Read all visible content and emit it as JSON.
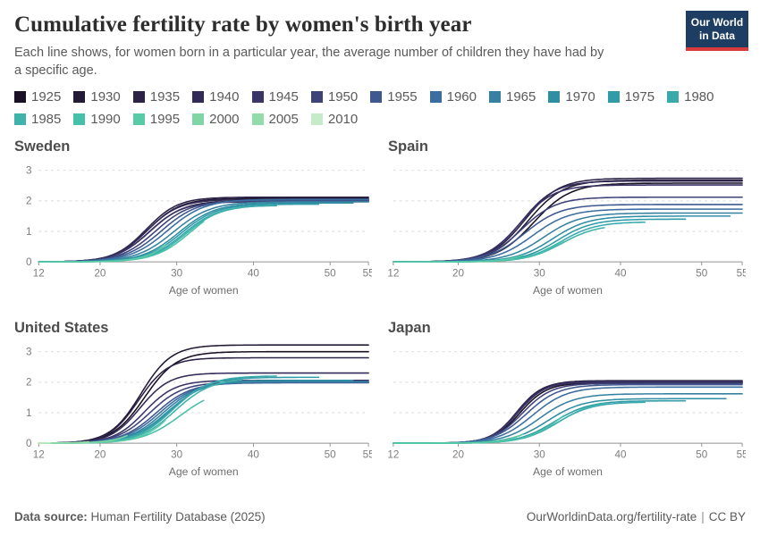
{
  "header": {
    "title": "Cumulative fertility rate by women's birth year",
    "subtitle": "Each line shows, for women born in a particular year, the average number of children they have had by a specific age."
  },
  "logo": {
    "line1": "Our World",
    "line2": "in Data",
    "bg_color": "#1d3d63",
    "accent_color": "#d93b3b"
  },
  "footer": {
    "datasource_label": "Data source:",
    "datasource_value": "Human Fertility Database (2025)",
    "url": "OurWorldinData.org/fertility-rate",
    "divider": "|",
    "license": "CC BY"
  },
  "chart_data": {
    "type": "line",
    "xlabel": "Age of women",
    "x_range": [
      12,
      55
    ],
    "x_ticks": [
      12,
      20,
      30,
      40,
      50,
      55
    ],
    "y_ticks": [
      0,
      1,
      2,
      3
    ],
    "ylim": [
      0,
      3.3
    ],
    "grid": "dashed horizontal gridlines at 1,2,3; solid baseline at 0",
    "legend_position": "top",
    "legend_years": [
      1925,
      1930,
      1935,
      1940,
      1945,
      1950,
      1955,
      1960,
      1965,
      1970,
      1975,
      1980,
      1985,
      1990,
      1995,
      2000,
      2005,
      2010
    ],
    "palette": {
      "1925": "#1a1125",
      "1930": "#231a36",
      "1935": "#2b2246",
      "1940": "#322b57",
      "1945": "#3a3467",
      "1950": "#3e4278",
      "1955": "#3f5890",
      "1960": "#3c6da0",
      "1965": "#3681a2",
      "1970": "#308ea3",
      "1975": "#319ba7",
      "1980": "#39a9ac",
      "1985": "#3fb3ab",
      "1990": "#47c0a9",
      "1995": "#58cba6",
      "2000": "#7fd5a5",
      "2005": "#92dcab",
      "2010": "#c6ebc8"
    },
    "panels": [
      {
        "country": "Sweden",
        "show_y_labels": true,
        "series": [
          {
            "year": 1925,
            "end_age": 55,
            "end_value": 2.0,
            "mid_age": 26.5,
            "steepness": 0.45
          },
          {
            "year": 1930,
            "end_age": 55,
            "end_value": 2.08,
            "mid_age": 26.2,
            "steepness": 0.47
          },
          {
            "year": 1935,
            "end_age": 55,
            "end_value": 2.12,
            "mid_age": 26.0,
            "steepness": 0.48
          },
          {
            "year": 1940,
            "end_age": 55,
            "end_value": 2.04,
            "mid_age": 26.1,
            "steepness": 0.47
          },
          {
            "year": 1945,
            "end_age": 55,
            "end_value": 1.97,
            "mid_age": 26.4,
            "steepness": 0.46
          },
          {
            "year": 1950,
            "end_age": 55,
            "end_value": 2.0,
            "mid_age": 27.2,
            "steepness": 0.44
          },
          {
            "year": 1955,
            "end_age": 55,
            "end_value": 2.03,
            "mid_age": 28.0,
            "steepness": 0.42
          },
          {
            "year": 1960,
            "end_age": 55,
            "end_value": 2.05,
            "mid_age": 28.8,
            "steepness": 0.41
          },
          {
            "year": 1965,
            "end_age": 55,
            "end_value": 1.97,
            "mid_age": 29.6,
            "steepness": 0.41
          },
          {
            "year": 1970,
            "end_age": 53,
            "end_value": 1.93,
            "mid_age": 30.3,
            "steepness": 0.42
          },
          {
            "year": 1975,
            "end_age": 48.5,
            "end_value": 1.89,
            "mid_age": 30.6,
            "steepness": 0.43
          },
          {
            "year": 1980,
            "end_age": 43,
            "end_value": 1.84,
            "mid_age": 30.9,
            "steepness": 0.44
          },
          {
            "year": 1985,
            "end_age": 38.5,
            "end_value": 1.78,
            "mid_age": 31.2,
            "steepness": 0.44
          },
          {
            "year": 1990,
            "end_age": 33.5,
            "end_value": 1.32,
            "mid_age": 31.8,
            "steepness": 0.43
          },
          {
            "year": 1995,
            "end_age": 28.5,
            "end_value": 0.55,
            "mid_age": 32.0,
            "steepness": 0.46
          }
        ]
      },
      {
        "country": "Spain",
        "show_y_labels": false,
        "series": [
          {
            "year": 1925,
            "end_age": 55,
            "end_value": 2.58,
            "mid_age": 29.3,
            "steepness": 0.44
          },
          {
            "year": 1930,
            "end_age": 55,
            "end_value": 2.68,
            "mid_age": 28.6,
            "steepness": 0.46
          },
          {
            "year": 1935,
            "end_age": 55,
            "end_value": 2.74,
            "mid_age": 28.2,
            "steepness": 0.47
          },
          {
            "year": 1940,
            "end_age": 55,
            "end_value": 2.65,
            "mid_age": 27.8,
            "steepness": 0.48
          },
          {
            "year": 1945,
            "end_age": 55,
            "end_value": 2.52,
            "mid_age": 27.6,
            "steepness": 0.48
          },
          {
            "year": 1950,
            "end_age": 55,
            "end_value": 2.12,
            "mid_age": 27.8,
            "steepness": 0.47
          },
          {
            "year": 1955,
            "end_age": 55,
            "end_value": 1.88,
            "mid_age": 28.2,
            "steepness": 0.45
          },
          {
            "year": 1960,
            "end_age": 55,
            "end_value": 1.73,
            "mid_age": 29.2,
            "steepness": 0.44
          },
          {
            "year": 1965,
            "end_age": 55,
            "end_value": 1.6,
            "mid_age": 30.5,
            "steepness": 0.44
          },
          {
            "year": 1970,
            "end_age": 53.5,
            "end_value": 1.5,
            "mid_age": 31.6,
            "steepness": 0.45
          },
          {
            "year": 1975,
            "end_age": 48,
            "end_value": 1.4,
            "mid_age": 32.2,
            "steepness": 0.46
          },
          {
            "year": 1980,
            "end_age": 43,
            "end_value": 1.3,
            "mid_age": 32.6,
            "steepness": 0.46
          },
          {
            "year": 1985,
            "end_age": 38,
            "end_value": 1.12,
            "mid_age": 32.8,
            "steepness": 0.46
          },
          {
            "year": 1990,
            "end_age": 33,
            "end_value": 0.7,
            "mid_age": 33.0,
            "steepness": 0.46
          },
          {
            "year": 1995,
            "end_age": 28,
            "end_value": 0.22,
            "mid_age": 33.0,
            "steepness": 0.48
          }
        ]
      },
      {
        "country": "United States",
        "show_y_labels": true,
        "series": [
          {
            "year": 1925,
            "end_age": 55,
            "end_value": 3.0,
            "mid_age": 25.8,
            "steepness": 0.48
          },
          {
            "year": 1930,
            "end_age": 55,
            "end_value": 3.22,
            "mid_age": 25.3,
            "steepness": 0.5
          },
          {
            "year": 1935,
            "end_age": 55,
            "end_value": 2.8,
            "mid_age": 25.0,
            "steepness": 0.52
          },
          {
            "year": 1940,
            "end_age": 55,
            "end_value": 2.3,
            "mid_age": 25.2,
            "steepness": 0.52
          },
          {
            "year": 1945,
            "end_age": 55,
            "end_value": 2.06,
            "mid_age": 25.8,
            "steepness": 0.5
          },
          {
            "year": 1950,
            "end_age": 55,
            "end_value": 2.0,
            "mid_age": 26.5,
            "steepness": 0.46
          },
          {
            "year": 1955,
            "end_age": 55,
            "end_value": 1.98,
            "mid_age": 27.3,
            "steepness": 0.44
          },
          {
            "year": 1960,
            "end_age": 55,
            "end_value": 2.0,
            "mid_age": 27.8,
            "steepness": 0.43
          },
          {
            "year": 1965,
            "end_age": 55,
            "end_value": 2.02,
            "mid_age": 28.3,
            "steepness": 0.43
          },
          {
            "year": 1970,
            "end_age": 53,
            "end_value": 2.06,
            "mid_age": 28.8,
            "steepness": 0.42
          },
          {
            "year": 1975,
            "end_age": 48.5,
            "end_value": 2.16,
            "mid_age": 29.2,
            "steepness": 0.42
          },
          {
            "year": 1980,
            "end_age": 43,
            "end_value": 2.2,
            "mid_age": 29.5,
            "steepness": 0.42
          },
          {
            "year": 1985,
            "end_age": 38.5,
            "end_value": 2.08,
            "mid_age": 29.8,
            "steepness": 0.42
          },
          {
            "year": 1990,
            "end_age": 33.5,
            "end_value": 1.4,
            "mid_age": 30.5,
            "steepness": 0.4
          },
          {
            "year": 1995,
            "end_age": 28.5,
            "end_value": 0.75,
            "mid_age": 30.8,
            "steepness": 0.44
          },
          {
            "year": 2000,
            "end_age": 23.5,
            "end_value": 0.25,
            "mid_age": 31.0,
            "steepness": 0.48
          },
          {
            "year": 2005,
            "end_age": 18.5,
            "end_value": 0.05,
            "mid_age": 31.0,
            "steepness": 0.5
          },
          {
            "year": 2010,
            "end_age": 13.5,
            "end_value": 0.01,
            "mid_age": 31.0,
            "steepness": 0.5
          }
        ]
      },
      {
        "country": "Japan",
        "show_y_labels": false,
        "series": [
          {
            "year": 1925,
            "end_age": 55,
            "end_value": 1.98,
            "mid_age": 27.6,
            "steepness": 0.6
          },
          {
            "year": 1930,
            "end_age": 55,
            "end_value": 2.05,
            "mid_age": 27.4,
            "steepness": 0.62
          },
          {
            "year": 1935,
            "end_age": 55,
            "end_value": 2.03,
            "mid_age": 27.2,
            "steepness": 0.63
          },
          {
            "year": 1940,
            "end_age": 55,
            "end_value": 1.99,
            "mid_age": 27.2,
            "steepness": 0.62
          },
          {
            "year": 1945,
            "end_age": 55,
            "end_value": 2.02,
            "mid_age": 27.4,
            "steepness": 0.6
          },
          {
            "year": 1950,
            "end_age": 55,
            "end_value": 1.96,
            "mid_age": 27.9,
            "steepness": 0.55
          },
          {
            "year": 1955,
            "end_age": 55,
            "end_value": 1.92,
            "mid_age": 28.4,
            "steepness": 0.5
          },
          {
            "year": 1960,
            "end_age": 55,
            "end_value": 1.84,
            "mid_age": 29.2,
            "steepness": 0.47
          },
          {
            "year": 1965,
            "end_age": 55,
            "end_value": 1.62,
            "mid_age": 30.0,
            "steepness": 0.46
          },
          {
            "year": 1970,
            "end_age": 53,
            "end_value": 1.46,
            "mid_age": 31.0,
            "steepness": 0.46
          },
          {
            "year": 1975,
            "end_age": 48,
            "end_value": 1.39,
            "mid_age": 31.8,
            "steepness": 0.46
          },
          {
            "year": 1980,
            "end_age": 43,
            "end_value": 1.34,
            "mid_age": 32.2,
            "steepness": 0.46
          },
          {
            "year": 1985,
            "end_age": 38,
            "end_value": 1.3,
            "mid_age": 32.4,
            "steepness": 0.46
          },
          {
            "year": 1990,
            "end_age": 33,
            "end_value": 0.9,
            "mid_age": 32.6,
            "steepness": 0.46
          },
          {
            "year": 1995,
            "end_age": 28,
            "end_value": 0.3,
            "mid_age": 32.8,
            "steepness": 0.48
          }
        ]
      }
    ]
  }
}
